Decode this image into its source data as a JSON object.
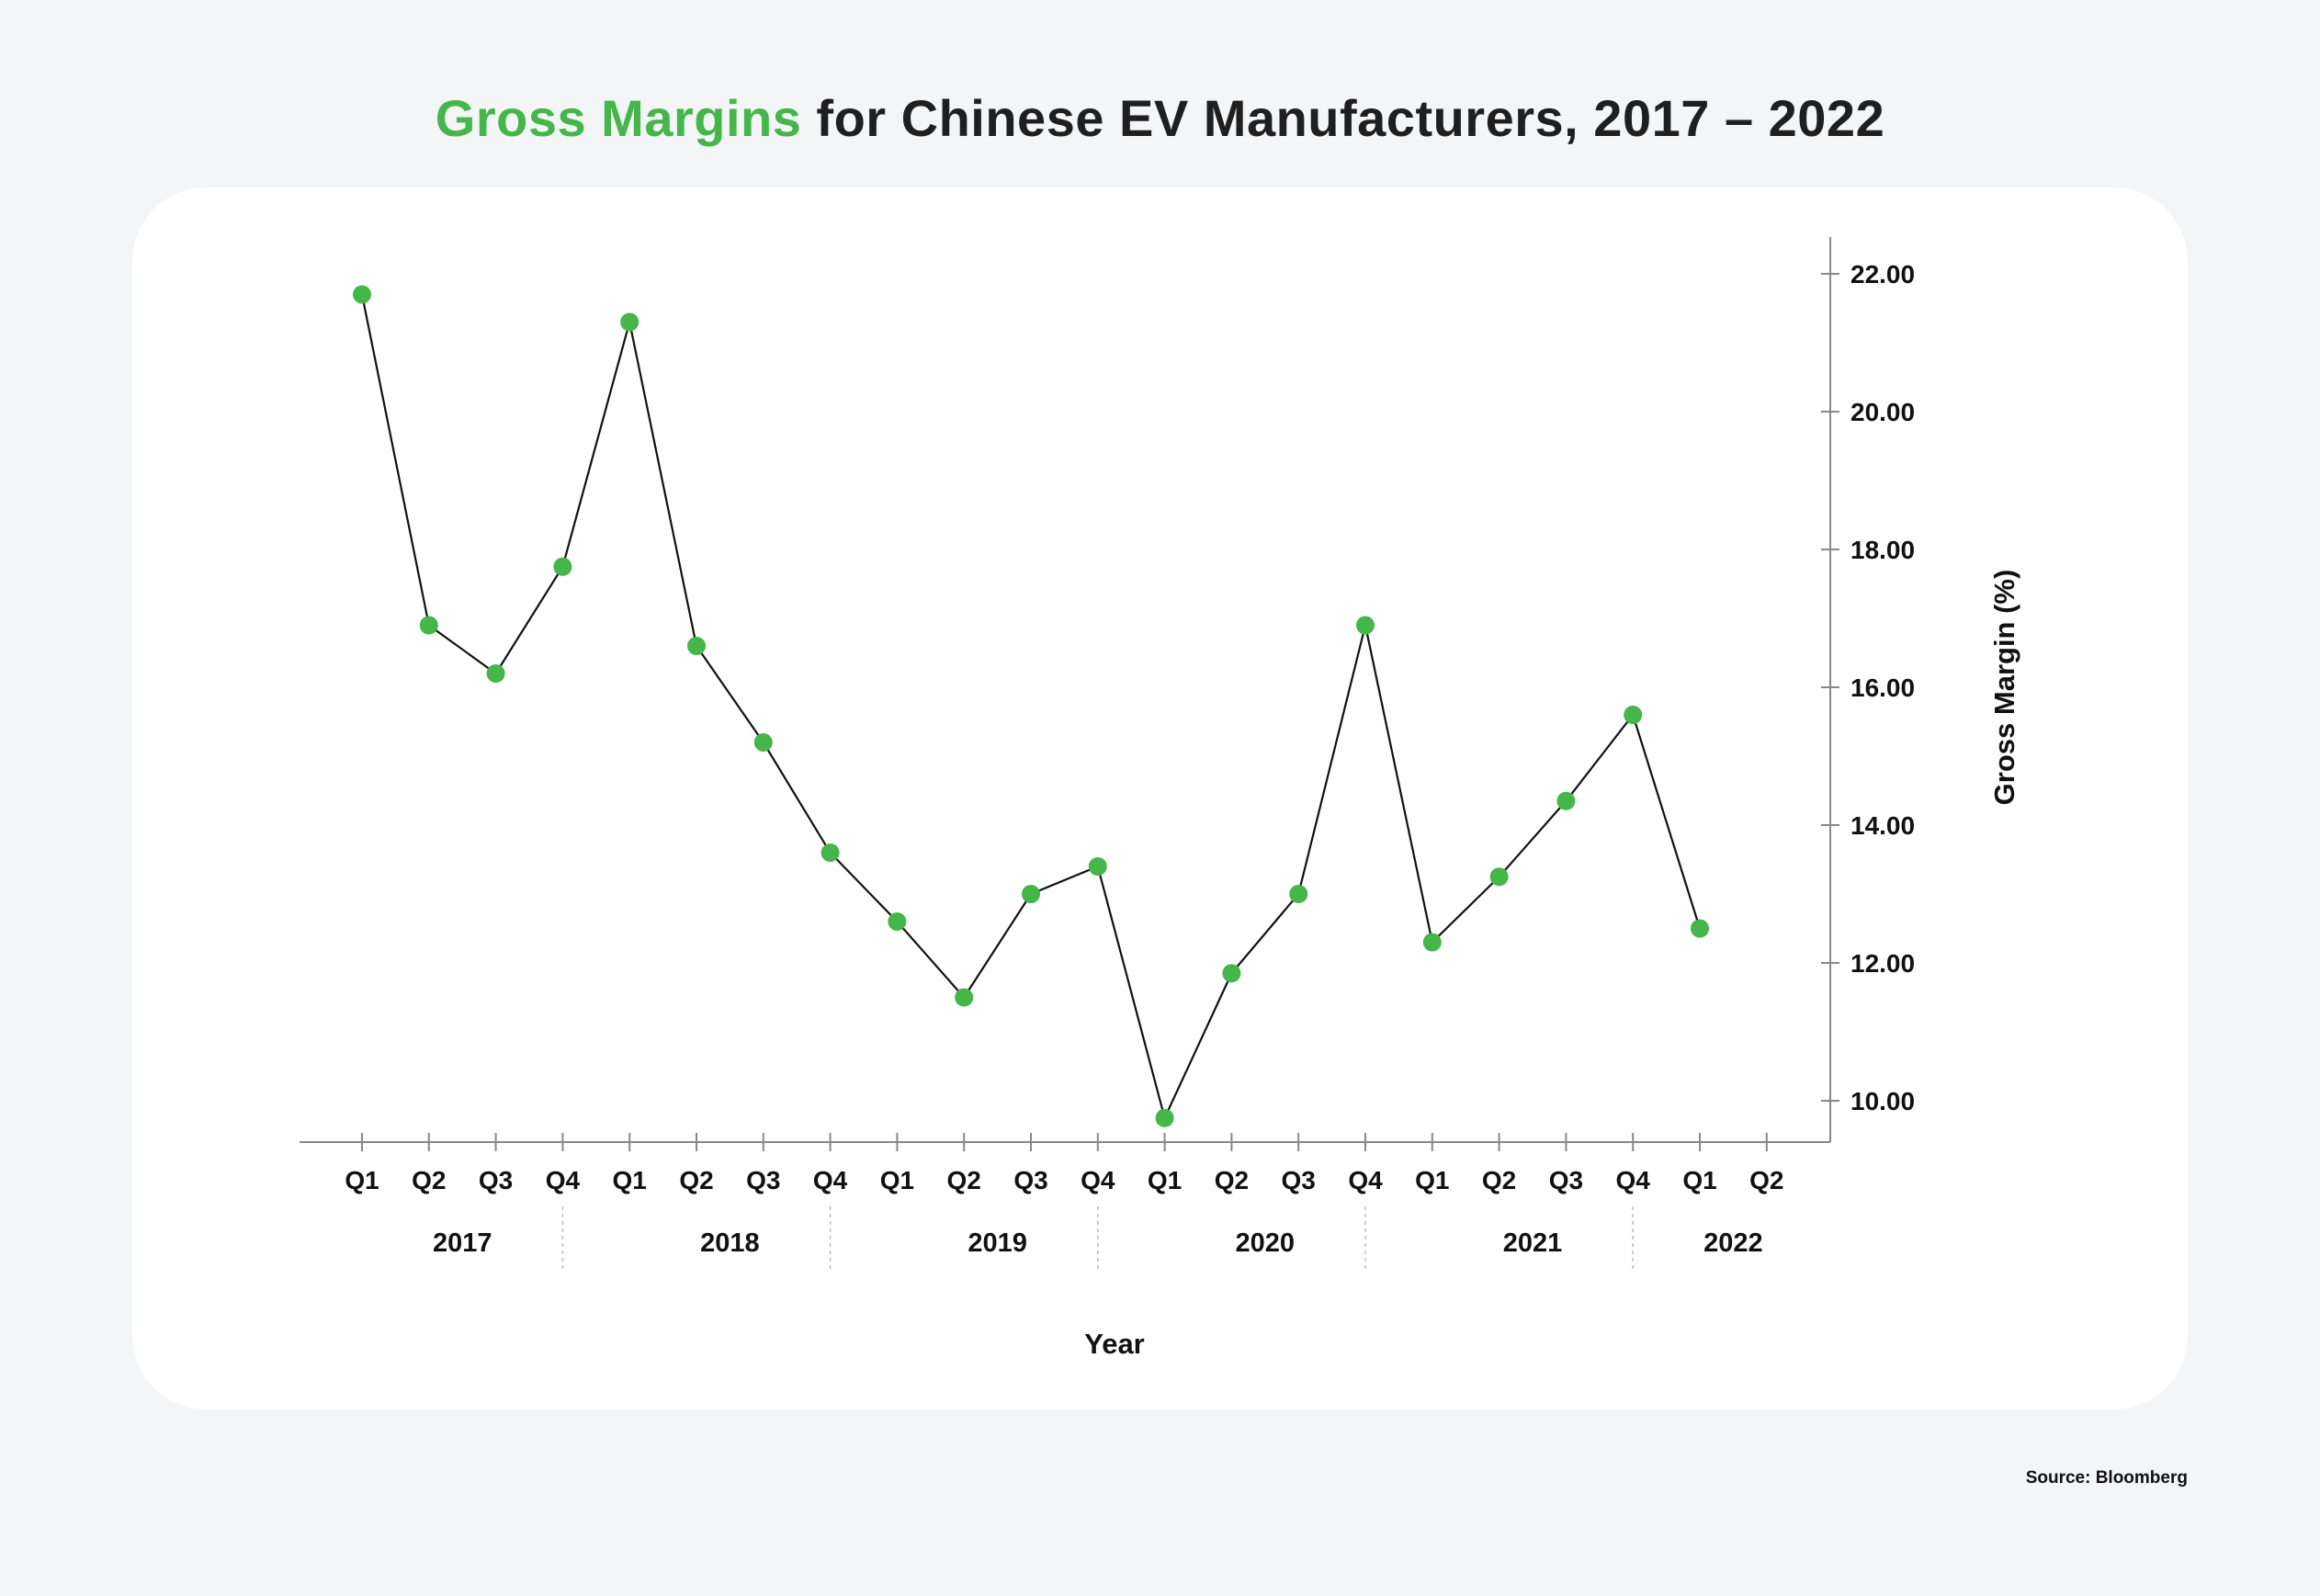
{
  "title": {
    "highlight": "Gross Margins",
    "rest": " for Chinese EV Manufacturers, 2017 – 2022"
  },
  "source": "Source: Bloomberg",
  "colors": {
    "accent": "#45b649",
    "line": "#111111",
    "axis": "#888888",
    "background": "#f4f5f7",
    "card": "#ffffff"
  },
  "chart_data": {
    "type": "line",
    "title": "Gross Margins for Chinese EV Manufacturers, 2017 – 2022",
    "xlabel": "Year",
    "ylabel": "Gross Margin (%)",
    "y_axis_side": "right",
    "ylim": [
      9.4,
      22.6
    ],
    "yticks": [
      "10.00",
      "12.00",
      "14.00",
      "16.00",
      "18.00",
      "20.00",
      "22.00"
    ],
    "categories": [
      "Q1",
      "Q2",
      "Q3",
      "Q4",
      "Q1",
      "Q2",
      "Q3",
      "Q4",
      "Q1",
      "Q2",
      "Q3",
      "Q4",
      "Q1",
      "Q2",
      "Q3",
      "Q4",
      "Q1",
      "Q2",
      "Q3",
      "Q4",
      "Q1",
      "Q2"
    ],
    "year_groups": [
      {
        "label": "2017",
        "start": 0,
        "count": 4
      },
      {
        "label": "2018",
        "start": 4,
        "count": 4
      },
      {
        "label": "2019",
        "start": 8,
        "count": 4
      },
      {
        "label": "2020",
        "start": 12,
        "count": 4
      },
      {
        "label": "2021",
        "start": 16,
        "count": 4
      },
      {
        "label": "2022",
        "start": 20,
        "count": 2
      }
    ],
    "series": [
      {
        "values": [
          21.7,
          16.9,
          16.2,
          17.75,
          21.3,
          16.6,
          15.2,
          13.6,
          12.6,
          11.5,
          13.0,
          13.4,
          9.75,
          11.85,
          13.0,
          16.9,
          12.3,
          13.25,
          14.35,
          15.6,
          12.5,
          null
        ]
      }
    ],
    "grid": false,
    "legend": "none"
  }
}
